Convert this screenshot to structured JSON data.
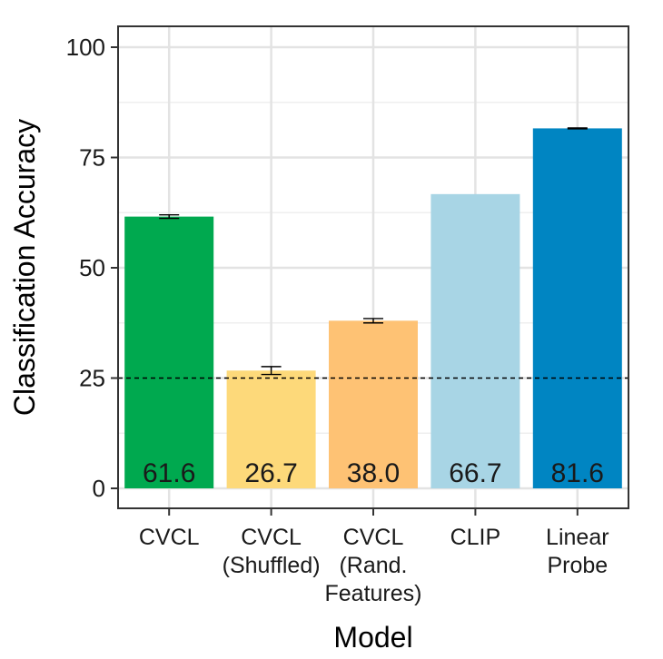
{
  "chart_data": {
    "type": "bar",
    "title": "",
    "xlabel": "Model",
    "ylabel": "Classification Accuracy",
    "ylim": [
      0,
      100
    ],
    "yticks": [
      0,
      25,
      50,
      75,
      100
    ],
    "grid": true,
    "reference_line": {
      "y": 25,
      "style": "dashed"
    },
    "categories": [
      {
        "lines": [
          "CVCL"
        ]
      },
      {
        "lines": [
          "CVCL",
          "(Shuffled)"
        ]
      },
      {
        "lines": [
          "CVCL",
          "(Rand.",
          "Features)"
        ]
      },
      {
        "lines": [
          "CLIP"
        ]
      },
      {
        "lines": [
          "Linear",
          "Probe"
        ]
      }
    ],
    "values": [
      61.6,
      26.7,
      38.0,
      66.7,
      81.6
    ],
    "value_labels": [
      "61.6",
      "26.7",
      "38.0",
      "66.7",
      "81.6"
    ],
    "errors": [
      0.4,
      0.9,
      0.5,
      0,
      0.1
    ],
    "colors": [
      "#00a94f",
      "#fdd97a",
      "#fec274",
      "#a8d5e5",
      "#0085c2"
    ]
  }
}
